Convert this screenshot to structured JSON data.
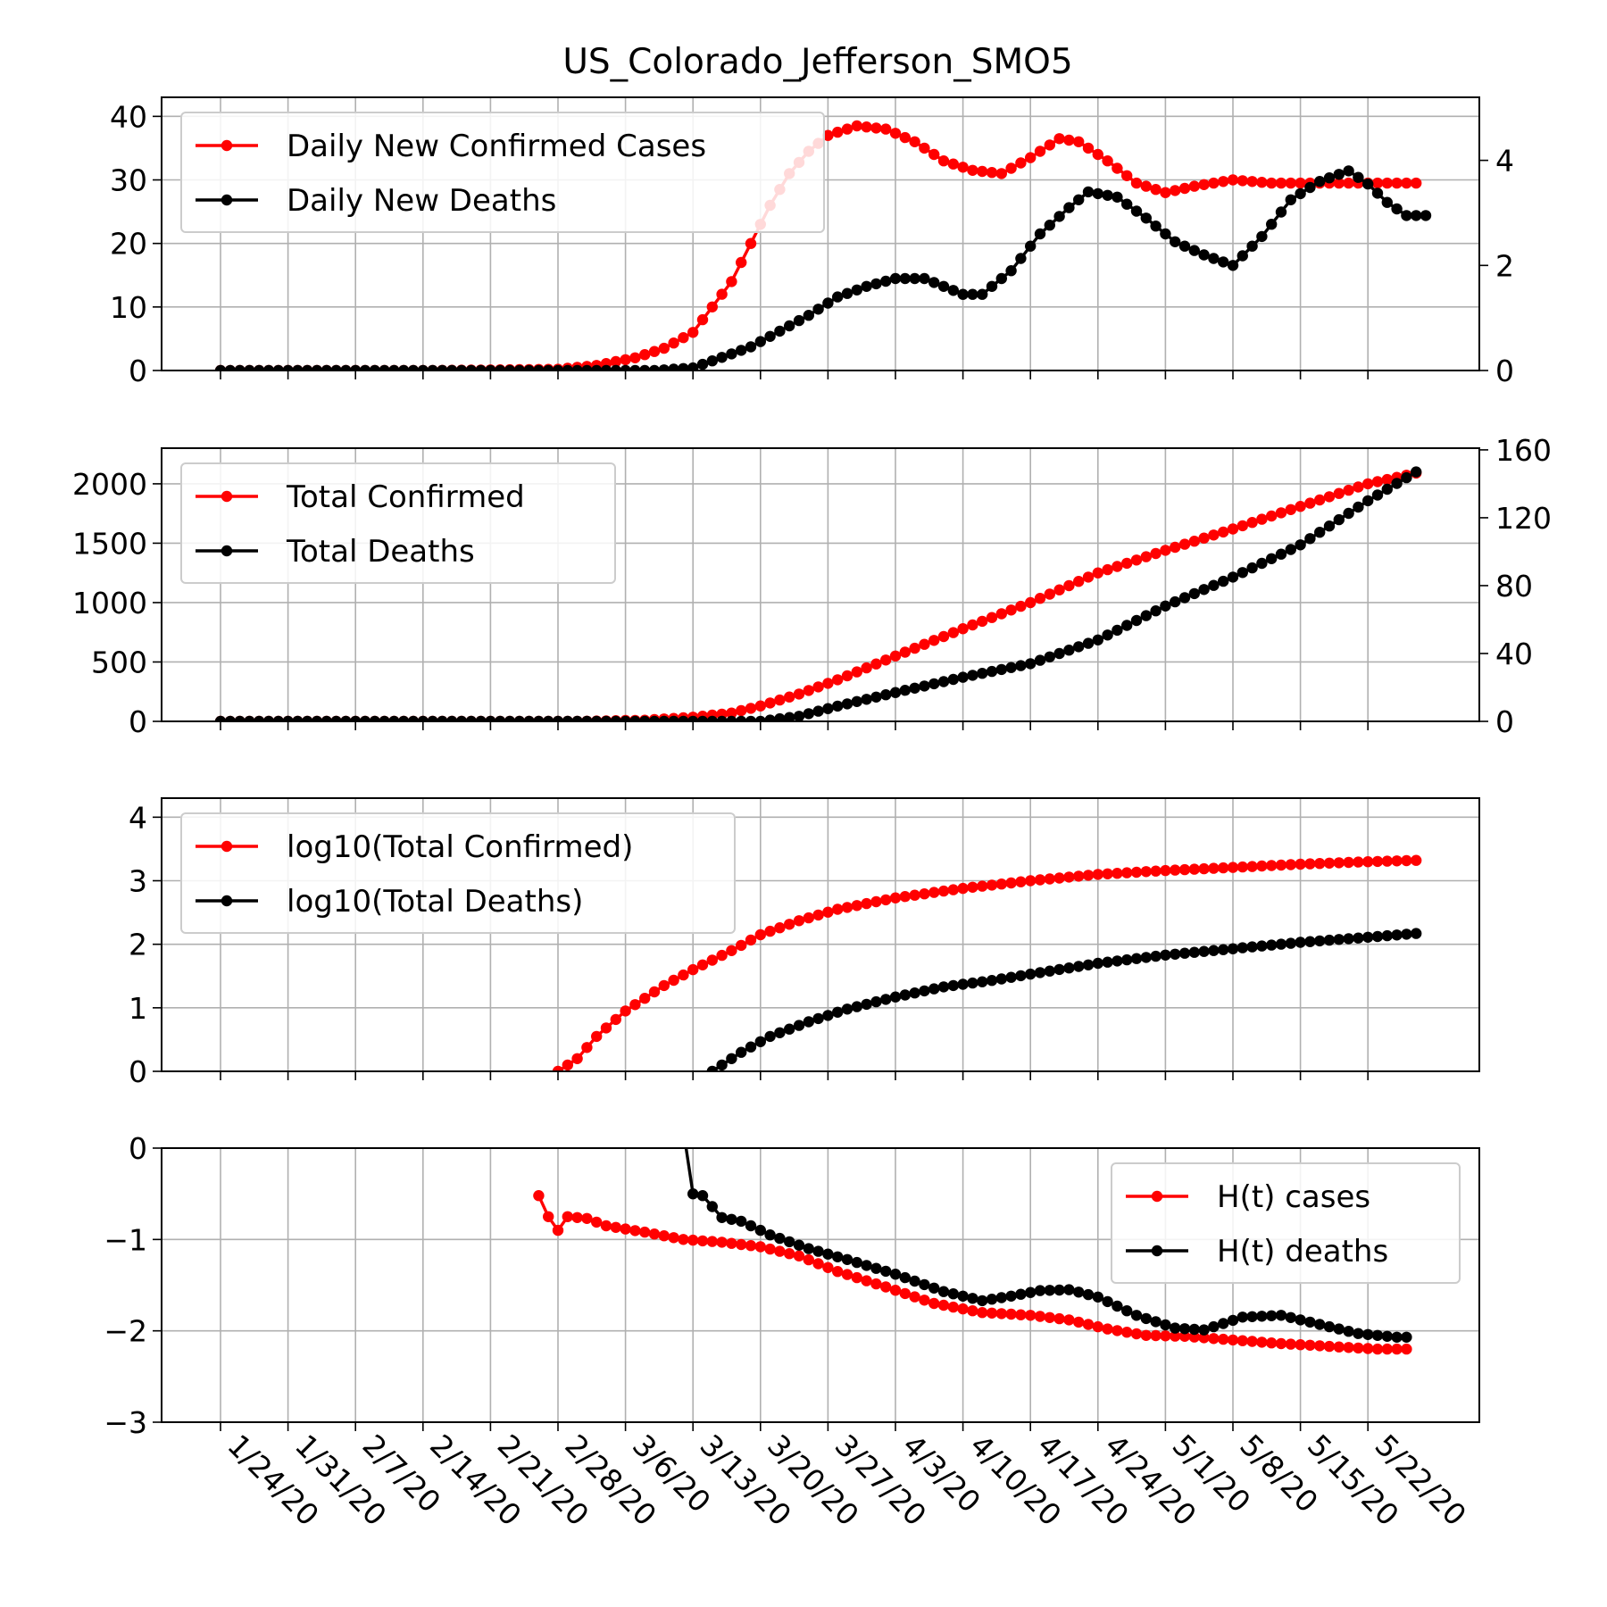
{
  "figure": {
    "title": "US_Colorado_Jefferson_SMO5"
  },
  "colors": {
    "cases": "#ff0000",
    "deaths": "#000000",
    "grid": "#b0b0b0"
  },
  "chart_data": [
    {
      "type": "line",
      "legend_position": "top-left",
      "grid": true,
      "x_ticks": [
        "1/24/20",
        "1/31/20",
        "2/7/20",
        "2/14/20",
        "2/21/20",
        "2/28/20",
        "3/6/20",
        "3/13/20",
        "3/20/20",
        "3/27/20",
        "4/3/20",
        "4/10/20",
        "4/17/20",
        "4/24/20",
        "5/1/20",
        "5/8/20",
        "5/15/20",
        "5/22/20"
      ],
      "left_axis": {
        "ylim": [
          0,
          43
        ],
        "ticks": [
          0,
          10,
          20,
          30,
          40
        ]
      },
      "right_axis": {
        "ylim": [
          0,
          5.2
        ],
        "ticks": [
          0,
          2,
          4
        ]
      },
      "series": [
        {
          "name": "Daily New Confirmed Cases",
          "axis": "left",
          "color": "#ff0000",
          "points": [
            [
              "1/24/20",
              0
            ],
            [
              "2/14/20",
              0
            ],
            [
              "2/28/20",
              0.2
            ],
            [
              "3/3/20",
              0.8
            ],
            [
              "3/7/20",
              2
            ],
            [
              "3/10/20",
              3.5
            ],
            [
              "3/13/20",
              6
            ],
            [
              "3/15/20",
              10
            ],
            [
              "3/17/20",
              14
            ],
            [
              "3/19/20",
              20
            ],
            [
              "3/21/20",
              26
            ],
            [
              "3/23/20",
              31
            ],
            [
              "3/25/20",
              34.5
            ],
            [
              "3/27/20",
              37
            ],
            [
              "3/30/20",
              38.5
            ],
            [
              "4/2/20",
              38
            ],
            [
              "4/5/20",
              36
            ],
            [
              "4/8/20",
              33
            ],
            [
              "4/11/20",
              31.5
            ],
            [
              "4/14/20",
              31
            ],
            [
              "4/17/20",
              33.5
            ],
            [
              "4/20/20",
              36.5
            ],
            [
              "4/22/20",
              36
            ],
            [
              "4/25/20",
              33
            ],
            [
              "4/28/20",
              29.5
            ],
            [
              "5/1/20",
              28
            ],
            [
              "5/4/20",
              29
            ],
            [
              "5/8/20",
              30
            ],
            [
              "5/12/20",
              29.5
            ],
            [
              "5/15/20",
              29.5
            ],
            [
              "5/19/20",
              29.5
            ],
            [
              "5/24/20",
              29.5
            ],
            [
              "5/27/20",
              29.5
            ]
          ]
        },
        {
          "name": "Daily New Deaths",
          "axis": "right",
          "color": "#000000",
          "points": [
            [
              "1/24/20",
              0
            ],
            [
              "3/9/20",
              0
            ],
            [
              "3/13/20",
              0.05
            ],
            [
              "3/16/20",
              0.25
            ],
            [
              "3/19/20",
              0.45
            ],
            [
              "3/22/20",
              0.75
            ],
            [
              "3/25/20",
              1.05
            ],
            [
              "3/28/20",
              1.4
            ],
            [
              "3/31/20",
              1.6
            ],
            [
              "4/3/20",
              1.75
            ],
            [
              "4/6/20",
              1.75
            ],
            [
              "4/8/20",
              1.6
            ],
            [
              "4/10/20",
              1.45
            ],
            [
              "4/12/20",
              1.45
            ],
            [
              "4/15/20",
              1.9
            ],
            [
              "4/18/20",
              2.6
            ],
            [
              "4/21/20",
              3.1
            ],
            [
              "4/23/20",
              3.4
            ],
            [
              "4/26/20",
              3.3
            ],
            [
              "4/29/20",
              2.9
            ],
            [
              "5/2/20",
              2.45
            ],
            [
              "5/5/20",
              2.2
            ],
            [
              "5/8/20",
              2.0
            ],
            [
              "5/11/20",
              2.55
            ],
            [
              "5/14/20",
              3.25
            ],
            [
              "5/17/20",
              3.6
            ],
            [
              "5/20/20",
              3.8
            ],
            [
              "5/22/20",
              3.55
            ],
            [
              "5/24/20",
              3.2
            ],
            [
              "5/26/20",
              2.95
            ],
            [
              "5/28/20",
              2.95
            ]
          ]
        }
      ]
    },
    {
      "type": "line",
      "legend_position": "top-left",
      "grid": true,
      "left_axis": {
        "ylim": [
          0,
          2300
        ],
        "ticks": [
          0,
          500,
          1000,
          1500,
          2000
        ]
      },
      "right_axis": {
        "ylim": [
          0,
          161
        ],
        "ticks": [
          0,
          40,
          80,
          120,
          160
        ]
      },
      "series": [
        {
          "name": "Total Confirmed",
          "axis": "left",
          "color": "#ff0000",
          "points": [
            [
              "1/24/20",
              0
            ],
            [
              "3/1/20",
              0
            ],
            [
              "3/8/20",
              10
            ],
            [
              "3/13/20",
              35
            ],
            [
              "3/17/20",
              70
            ],
            [
              "3/20/20",
              130
            ],
            [
              "3/24/20",
              230
            ],
            [
              "3/28/20",
              350
            ],
            [
              "4/3/20",
              550
            ],
            [
              "4/10/20",
              780
            ],
            [
              "4/17/20",
              1000
            ],
            [
              "4/24/20",
              1250
            ],
            [
              "5/1/20",
              1440
            ],
            [
              "5/8/20",
              1620
            ],
            [
              "5/15/20",
              1810
            ],
            [
              "5/22/20",
              2000
            ],
            [
              "5/27/20",
              2090
            ]
          ]
        },
        {
          "name": "Total Deaths",
          "axis": "right",
          "color": "#000000",
          "points": [
            [
              "1/24/20",
              0
            ],
            [
              "3/20/20",
              0
            ],
            [
              "3/24/20",
              3
            ],
            [
              "3/28/20",
              9
            ],
            [
              "4/3/20",
              17
            ],
            [
              "4/10/20",
              26
            ],
            [
              "4/17/20",
              34
            ],
            [
              "4/24/20",
              48
            ],
            [
              "5/1/20",
              68
            ],
            [
              "5/8/20",
              85
            ],
            [
              "5/15/20",
              104
            ],
            [
              "5/22/20",
              130
            ],
            [
              "5/27/20",
              147
            ]
          ]
        }
      ]
    },
    {
      "type": "line",
      "legend_position": "top-left",
      "grid": true,
      "left_axis": {
        "ylim": [
          0,
          4.3
        ],
        "ticks": [
          0,
          1,
          2,
          3,
          4
        ]
      },
      "series": [
        {
          "name": "log10(Total Confirmed)",
          "axis": "left",
          "color": "#ff0000",
          "points": [
            [
              "2/28/20",
              0
            ],
            [
              "3/1/20",
              0.2
            ],
            [
              "3/3/20",
              0.55
            ],
            [
              "3/6/20",
              0.95
            ],
            [
              "3/10/20",
              1.35
            ],
            [
              "3/13/20",
              1.6
            ],
            [
              "3/17/20",
              1.9
            ],
            [
              "3/20/20",
              2.15
            ],
            [
              "3/24/20",
              2.37
            ],
            [
              "3/28/20",
              2.55
            ],
            [
              "4/3/20",
              2.73
            ],
            [
              "4/10/20",
              2.88
            ],
            [
              "4/17/20",
              3.0
            ],
            [
              "4/24/20",
              3.1
            ],
            [
              "5/1/20",
              3.16
            ],
            [
              "5/8/20",
              3.21
            ],
            [
              "5/15/20",
              3.26
            ],
            [
              "5/22/20",
              3.3
            ],
            [
              "5/27/20",
              3.32
            ]
          ]
        },
        {
          "name": "log10(Total Deaths)",
          "axis": "left",
          "color": "#000000",
          "points": [
            [
              "3/15/20",
              0
            ],
            [
              "3/18/20",
              0.3
            ],
            [
              "3/21/20",
              0.55
            ],
            [
              "3/25/20",
              0.78
            ],
            [
              "3/29/20",
              0.98
            ],
            [
              "4/3/20",
              1.17
            ],
            [
              "4/8/20",
              1.33
            ],
            [
              "4/13/20",
              1.43
            ],
            [
              "4/17/20",
              1.53
            ],
            [
              "4/24/20",
              1.7
            ],
            [
              "5/1/20",
              1.83
            ],
            [
              "5/8/20",
              1.93
            ],
            [
              "5/15/20",
              2.03
            ],
            [
              "5/22/20",
              2.11
            ],
            [
              "5/27/20",
              2.17
            ]
          ]
        }
      ]
    },
    {
      "type": "line",
      "legend_position": "top-right",
      "grid": true,
      "left_axis": {
        "ylim": [
          -3,
          0
        ],
        "ticks": [
          -3,
          -2,
          -1,
          0
        ]
      },
      "series": [
        {
          "name": "H(t) cases",
          "axis": "left",
          "color": "#ff0000",
          "points": [
            [
              "2/26/20",
              -0.52
            ],
            [
              "2/27/20",
              -0.75
            ],
            [
              "2/28/20",
              -0.9
            ],
            [
              "2/29/20",
              -0.75
            ],
            [
              "3/2/20",
              -0.77
            ],
            [
              "3/4/20",
              -0.85
            ],
            [
              "3/8/20",
              -0.92
            ],
            [
              "3/12/20",
              -1.0
            ],
            [
              "3/16/20",
              -1.03
            ],
            [
              "3/20/20",
              -1.08
            ],
            [
              "3/24/20",
              -1.18
            ],
            [
              "3/28/20",
              -1.35
            ],
            [
              "4/2/20",
              -1.52
            ],
            [
              "4/7/20",
              -1.7
            ],
            [
              "4/12/20",
              -1.8
            ],
            [
              "4/17/20",
              -1.83
            ],
            [
              "4/21/20",
              -1.88
            ],
            [
              "4/25/20",
              -1.98
            ],
            [
              "4/29/20",
              -2.05
            ],
            [
              "5/3/20",
              -2.06
            ],
            [
              "5/8/20",
              -2.1
            ],
            [
              "5/13/20",
              -2.14
            ],
            [
              "5/18/20",
              -2.17
            ],
            [
              "5/23/20",
              -2.2
            ],
            [
              "5/26/20",
              -2.2
            ]
          ]
        },
        {
          "name": "H(t) deaths",
          "axis": "left",
          "color": "#000000",
          "points": [
            [
              "3/12/20",
              0.2
            ],
            [
              "3/13/20",
              -0.5
            ],
            [
              "3/14/20",
              -0.52
            ],
            [
              "3/16/20",
              -0.76
            ],
            [
              "3/18/20",
              -0.8
            ],
            [
              "3/21/20",
              -0.95
            ],
            [
              "3/25/20",
              -1.1
            ],
            [
              "3/29/20",
              -1.22
            ],
            [
              "4/3/20",
              -1.38
            ],
            [
              "4/8/20",
              -1.57
            ],
            [
              "4/12/20",
              -1.67
            ],
            [
              "4/15/20",
              -1.62
            ],
            [
              "4/18/20",
              -1.56
            ],
            [
              "4/21/20",
              -1.55
            ],
            [
              "4/24/20",
              -1.63
            ],
            [
              "4/28/20",
              -1.83
            ],
            [
              "5/2/20",
              -1.97
            ],
            [
              "5/5/20",
              -1.99
            ],
            [
              "5/9/20",
              -1.85
            ],
            [
              "5/13/20",
              -1.83
            ],
            [
              "5/17/20",
              -1.93
            ],
            [
              "5/21/20",
              -2.03
            ],
            [
              "5/25/20",
              -2.07
            ],
            [
              "5/26/20",
              -2.07
            ]
          ]
        }
      ]
    }
  ]
}
